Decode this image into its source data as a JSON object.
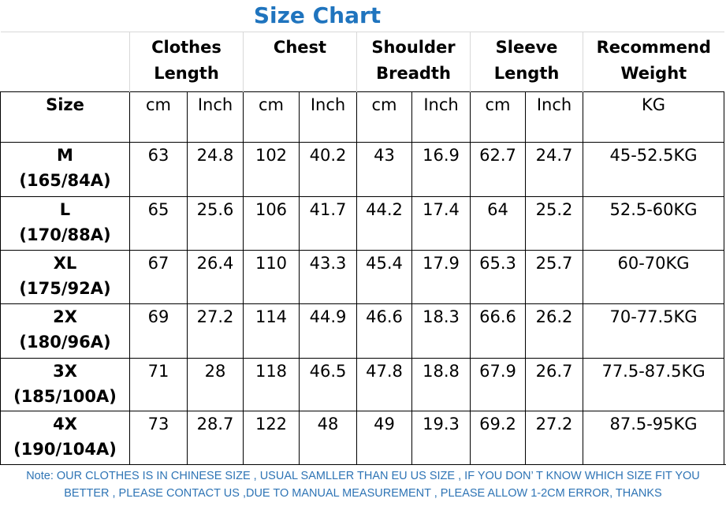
{
  "title": "Size Chart",
  "columns": [
    {
      "label": "Clothes Length",
      "line1": "Clothes",
      "line2": "Length"
    },
    {
      "label": "Chest",
      "line1": "Chest",
      "line2": ""
    },
    {
      "label": "Shoulder Breadth",
      "line1": "Shoulder",
      "line2": "Breadth"
    },
    {
      "label": "Sleeve Length",
      "line1": "Sleeve",
      "line2": "Length"
    },
    {
      "label": "Recommend Weight",
      "line1": "Recommend",
      "line2": "Weight"
    }
  ],
  "units_row": {
    "size_label": "Size",
    "units": [
      "cm",
      "Inch",
      "cm",
      "Inch",
      "cm",
      "Inch",
      "cm",
      "Inch",
      "KG"
    ]
  },
  "rows": [
    {
      "size": "M",
      "code": "(165/84A)",
      "values": [
        "63",
        "24.8",
        "102",
        "40.2",
        "43",
        "16.9",
        "62.7",
        "24.7",
        "45-52.5KG"
      ]
    },
    {
      "size": "L",
      "code": "(170/88A)",
      "values": [
        "65",
        "25.6",
        "106",
        "41.7",
        "44.2",
        "17.4",
        "64",
        "25.2",
        "52.5-60KG"
      ]
    },
    {
      "size": "XL",
      "code": "(175/92A)",
      "values": [
        "67",
        "26.4",
        "110",
        "43.3",
        "45.4",
        "17.9",
        "65.3",
        "25.7",
        "60-70KG"
      ]
    },
    {
      "size": "2X",
      "code": "(180/96A)",
      "values": [
        "69",
        "27.2",
        "114",
        "44.9",
        "46.6",
        "18.3",
        "66.6",
        "26.2",
        "70-77.5KG"
      ]
    },
    {
      "size": "3X",
      "code": "(185/100A)",
      "values": [
        "71",
        "28",
        "118",
        "46.5",
        "47.8",
        "18.8",
        "67.9",
        "26.7",
        "77.5-87.5KG"
      ]
    },
    {
      "size": "4X",
      "code": "(190/104A)",
      "values": [
        "73",
        "28.7",
        "122",
        "48",
        "49",
        "19.3",
        "69.2",
        "27.2",
        "87.5-95KG"
      ]
    }
  ],
  "note": {
    "line1": "Note: OUR CLOTHES IS IN CHINESE SIZE , USUAL SAMLLER THAN EU US SIZE , IF YOU DON’ T KNOW WHICH SIZE FIT YOU",
    "line2": "BETTER , PLEASE CONTACT US ,DUE TO MANUAL MEASUREMENT , PLEASE ALLOW 1-2CM ERROR, THANKS"
  },
  "colors": {
    "title": "#1f74be",
    "note": "#2e74b5",
    "border": "#000000",
    "gridline": "#d8d8d8"
  }
}
